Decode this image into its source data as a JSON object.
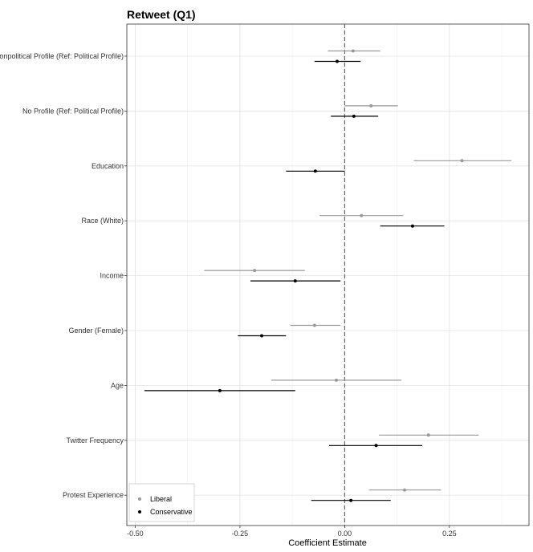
{
  "chart_data": {
    "type": "scatter",
    "title": "Retweet (Q1)",
    "xlabel": "Coefficient Estimate",
    "ylabel": "",
    "xlim": [
      -0.52,
      0.44
    ],
    "xticks": [
      -0.5,
      -0.25,
      0,
      0.25
    ],
    "xtick_labels": [
      "-0.50",
      "-0.25",
      "0.00",
      "0.25"
    ],
    "reference_line": 0,
    "grid": true,
    "legend_position": "bottom-left",
    "categories": [
      "Nonpolitical Profile (Ref: Political Profile)",
      "No Profile (Ref: Political Profile)",
      "Education",
      "Race (White)",
      "Income",
      "Gender (Female)",
      "Age",
      "Twitter Frequency",
      "Protest Experience"
    ],
    "series": [
      {
        "name": "Liberal",
        "color": "#999999",
        "estimates": [
          0.02,
          0.063,
          0.28,
          0.04,
          -0.215,
          -0.072,
          -0.02,
          0.2,
          0.143
        ],
        "ci_low": [
          -0.04,
          0.0,
          0.165,
          -0.06,
          -0.335,
          -0.13,
          -0.175,
          0.082,
          0.058
        ],
        "ci_high": [
          0.085,
          0.127,
          0.398,
          0.14,
          -0.095,
          -0.01,
          0.135,
          0.32,
          0.23
        ]
      },
      {
        "name": "Conservative",
        "color": "#000000",
        "estimates": [
          -0.018,
          0.022,
          -0.07,
          0.162,
          -0.118,
          -0.198,
          -0.298,
          0.075,
          0.015
        ],
        "ci_low": [
          -0.072,
          -0.033,
          -0.14,
          0.085,
          -0.225,
          -0.255,
          -0.478,
          -0.037,
          -0.08
        ],
        "ci_high": [
          0.038,
          0.08,
          0.0,
          0.238,
          -0.01,
          -0.14,
          -0.118,
          0.185,
          0.11
        ]
      }
    ]
  }
}
